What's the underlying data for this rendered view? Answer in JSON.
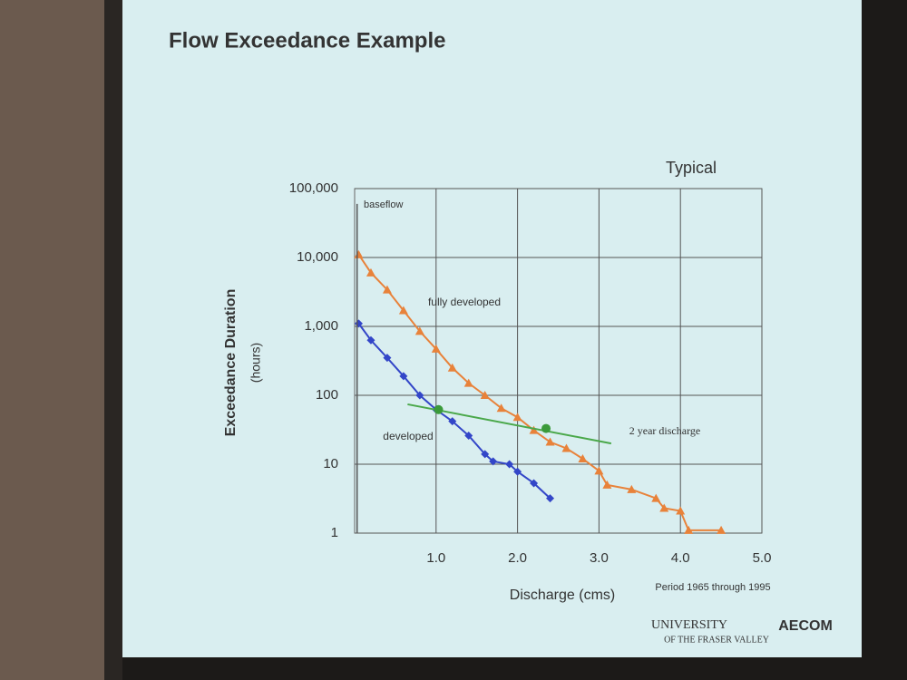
{
  "chart_data": {
    "type": "line",
    "title": "Flow Exceedance Example",
    "subtitle": "Typical",
    "x_label": "Discharge (cms)",
    "y_label": "Exceedance Duration",
    "y_label_unit": "(hours)",
    "note": "Period 1965 through 1995",
    "logos": [
      "UNIVERSITY",
      "OF THE FRASER VALLEY",
      "AECOM"
    ],
    "xlim": [
      0,
      5
    ],
    "ylim": [
      1,
      100000
    ],
    "log_y": true,
    "grid": true,
    "xticks": [
      {
        "value": 1,
        "label": "1.0"
      },
      {
        "value": 2,
        "label": "2.0"
      },
      {
        "value": 3,
        "label": "3.0"
      },
      {
        "value": 4,
        "label": "4.0"
      },
      {
        "value": 5,
        "label": "5.0"
      }
    ],
    "yticks": [
      1,
      10,
      100,
      {
        "value": 1000,
        "label": "1,000"
      },
      {
        "value": 10000,
        "label": "10,000"
      },
      {
        "value": 100000,
        "label": "100,000"
      }
    ],
    "series": [
      {
        "name": "fully developed",
        "color": "#e8823a",
        "marker": "triangle",
        "x": [
          0.05,
          0.2,
          0.4,
          0.6,
          0.8,
          1.0,
          1.2,
          1.4,
          1.6,
          1.8,
          2.0,
          2.2,
          2.4,
          2.6,
          2.8,
          3.0,
          3.1,
          3.4,
          3.7,
          3.8,
          4.0,
          4.1,
          4.5
        ],
        "values": [
          11000,
          6000,
          3400,
          1700,
          850,
          470,
          250,
          150,
          100,
          65,
          48,
          31,
          21,
          17,
          12,
          8,
          5,
          4.3,
          3.2,
          2.3,
          2.1,
          1.1,
          1.1
        ]
      },
      {
        "name": "developed",
        "color": "#3346c8",
        "marker": "diamond",
        "x": [
          0.05,
          0.2,
          0.4,
          0.6,
          0.8,
          1.0,
          1.2,
          1.4,
          1.6,
          1.7,
          1.9,
          2.0,
          2.2,
          2.4
        ],
        "values": [
          1100,
          630,
          350,
          190,
          100,
          62,
          42,
          26,
          14,
          11,
          10,
          7.8,
          5.3,
          3.2
        ]
      },
      {
        "name": "2 year discharge",
        "color": "#4aa84a",
        "marker": "none",
        "x": [
          0.65,
          3.15
        ],
        "values": [
          74,
          20
        ]
      },
      {
        "color": "#3a9a3a",
        "marker": "circle",
        "line": false,
        "x": [
          1.03,
          2.35
        ],
        "values": [
          62,
          33
        ]
      },
      {
        "name": "baseflow",
        "color": "#555555",
        "marker": "none",
        "x": [
          0.03,
          0.03
        ],
        "values": [
          1,
          60000
        ]
      }
    ]
  }
}
